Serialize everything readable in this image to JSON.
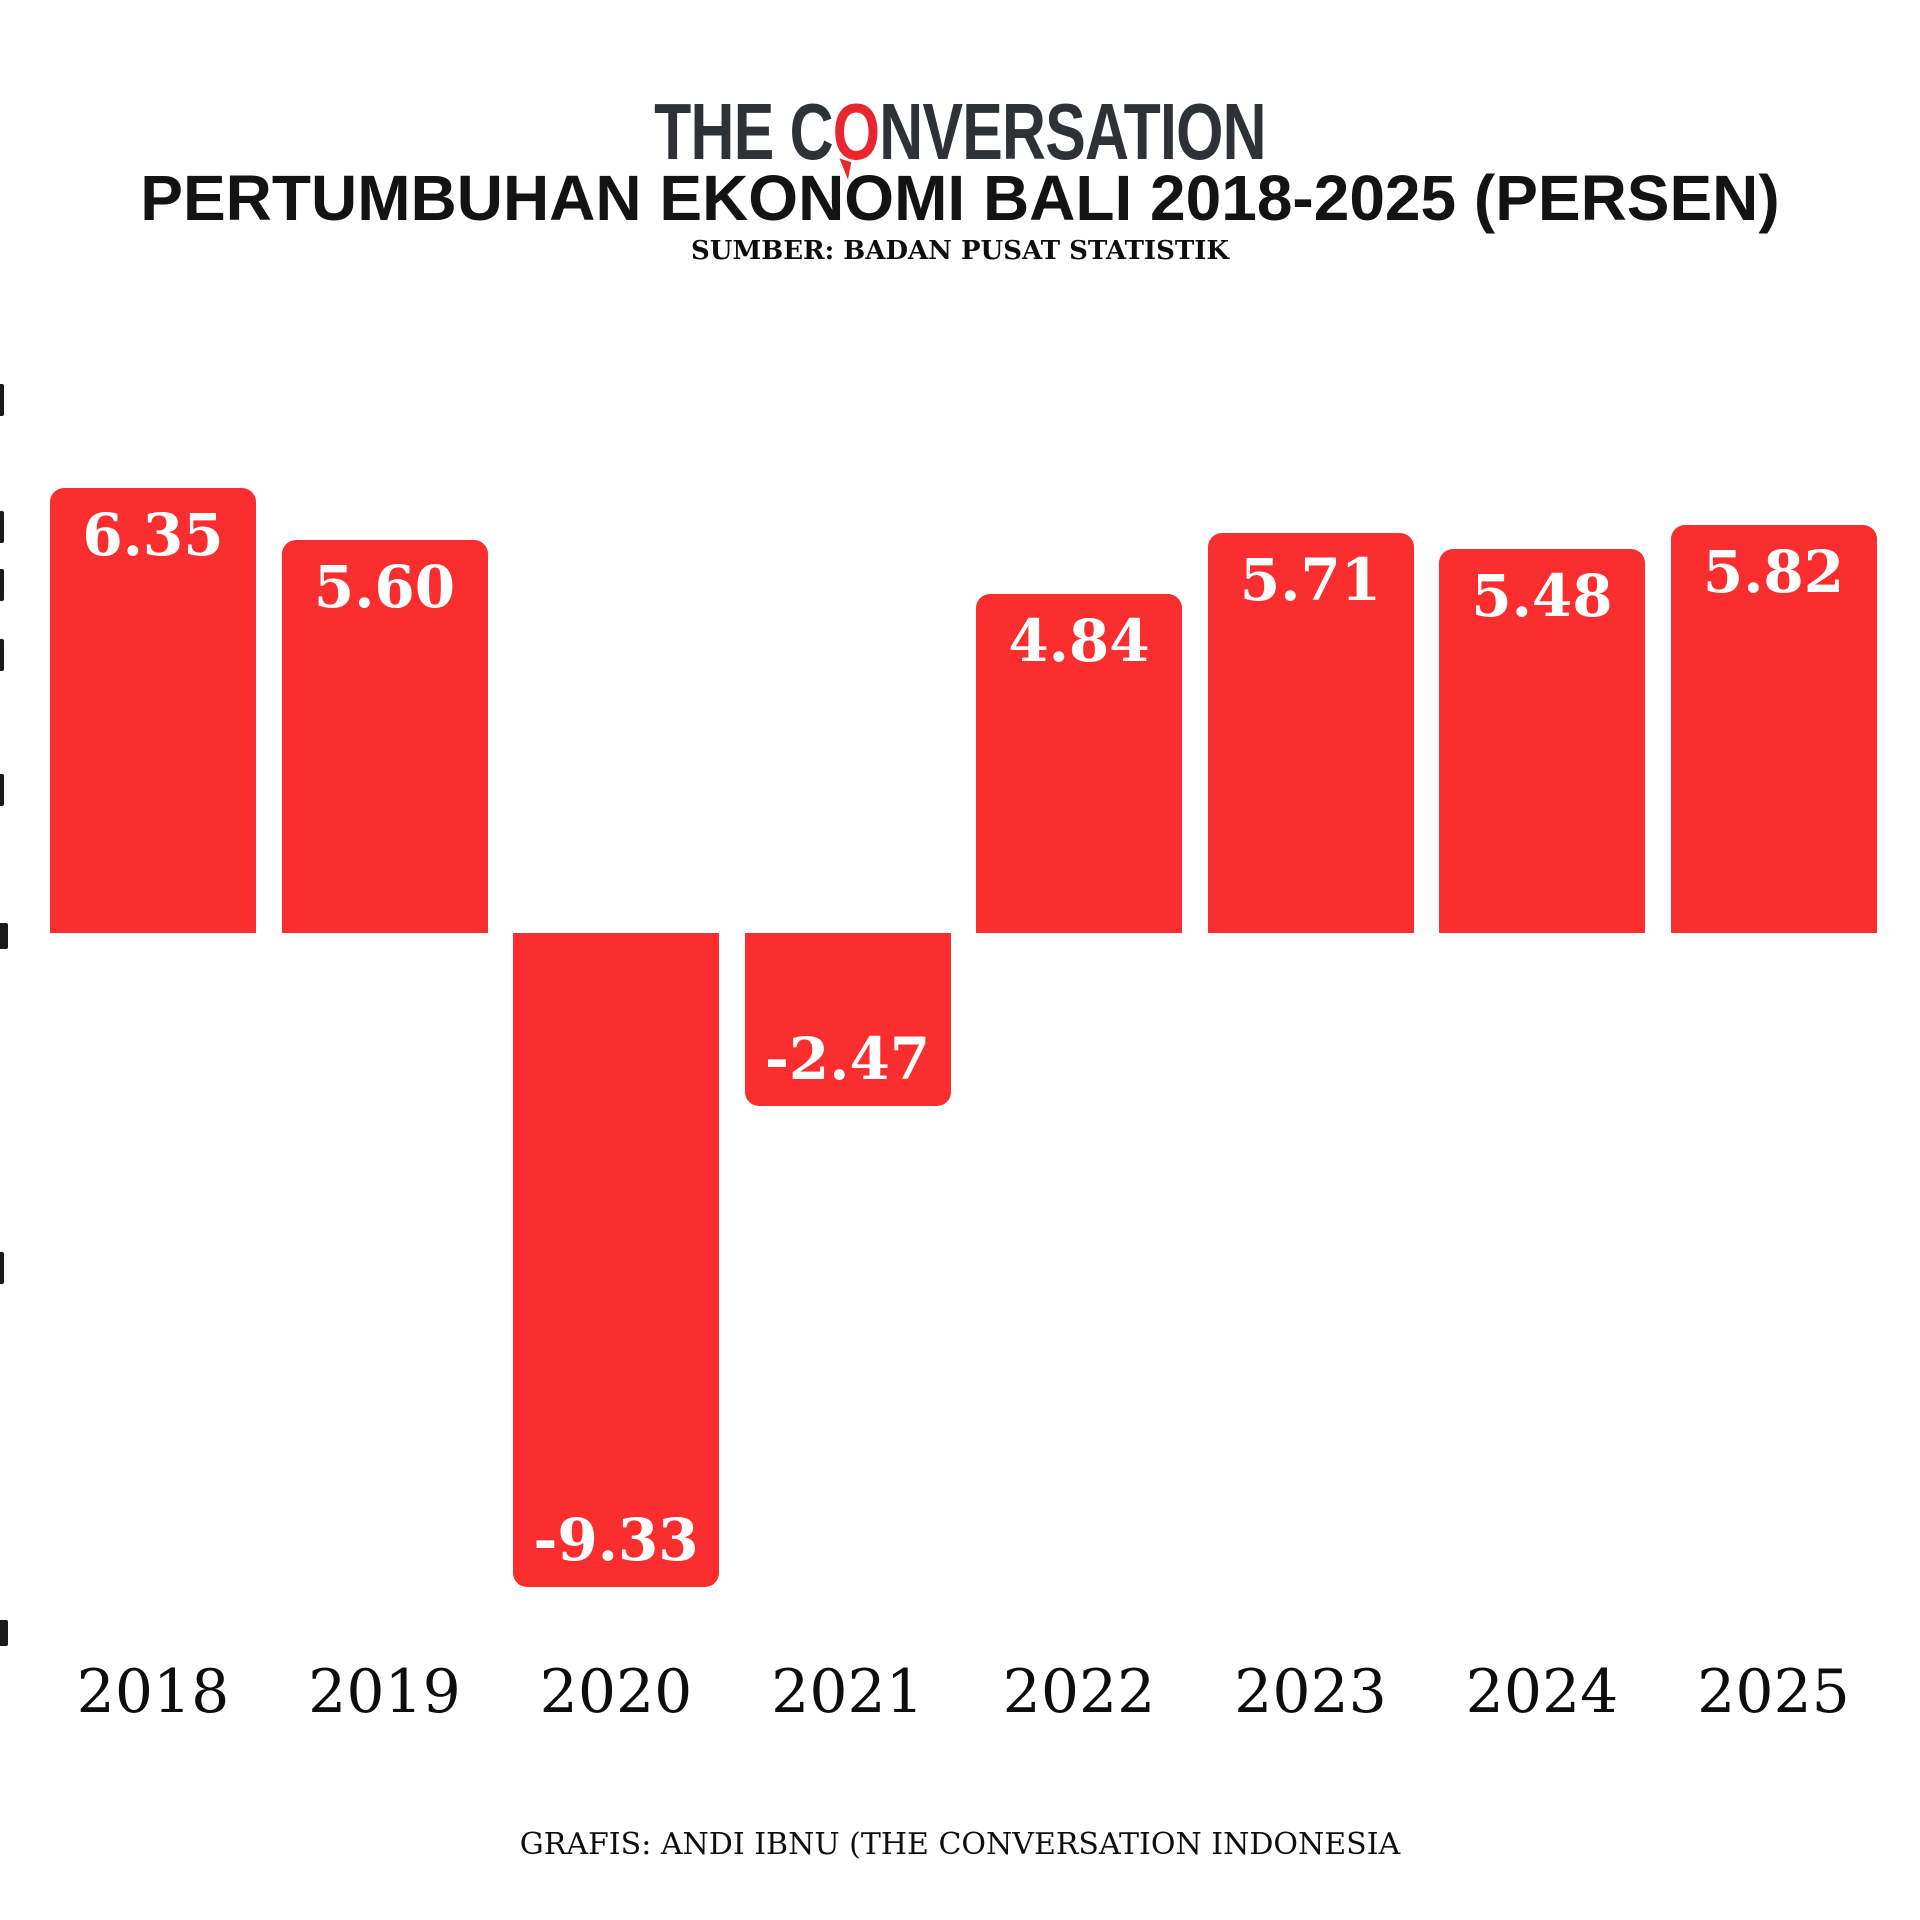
{
  "header": {
    "logo": {
      "part1": "THE C",
      "accent": "O",
      "part2": "NVERSATION",
      "text_color": "#2e3237",
      "accent_color": "#e8262d"
    },
    "title": "PERTUMBUHAN EKONOMI BALI 2018-2025 (PERSEN)",
    "subtitle": "SUMBER: BADAN PUSAT STATISTIK"
  },
  "footer": {
    "credit": "GRAFIS: ANDI IBNU (THE CONVERSATION INDONESIA"
  },
  "chart_data": {
    "type": "bar",
    "title": "PERTUMBUHAN EKONOMI BALI 2018-2025 (PERSEN)",
    "source": "SUMBER: BADAN PUSAT STATISTIK",
    "categories": [
      "2018",
      "2019",
      "2020",
      "2021",
      "2022",
      "2023",
      "2024",
      "2025"
    ],
    "values": [
      6.35,
      5.6,
      -9.33,
      -2.47,
      4.84,
      5.71,
      5.48,
      5.82
    ],
    "value_labels": [
      "6.35",
      "5.60",
      "-9.33",
      "-2.47",
      "4.84",
      "5.71",
      "5.48",
      "5.82"
    ],
    "bar_color": "#fa2e2e",
    "value_label_color": "#ffffff",
    "xlabel": "",
    "ylabel": "",
    "ylim": [
      -10.5,
      8
    ],
    "grid": false,
    "legend": false,
    "y_axis_labels_clipped": true,
    "clipped_y_tick_marks_y": [
      400,
      527,
      585,
      655,
      790,
      933,
      1268,
      1630
    ]
  }
}
